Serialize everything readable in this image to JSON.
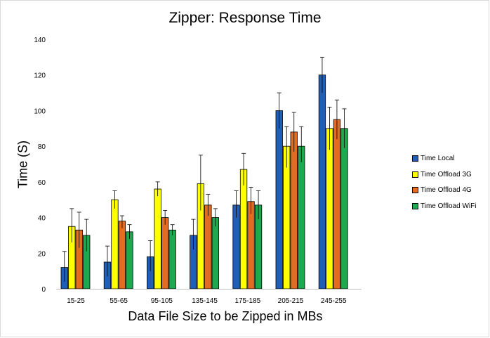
{
  "chart_data": {
    "type": "bar",
    "title": "Zipper: Response Time",
    "xlabel": "Data File Size to be Zipped in MBs",
    "ylabel": "Time (S)",
    "ylim": [
      0,
      140
    ],
    "yticks": [
      0,
      20,
      40,
      60,
      80,
      100,
      120,
      140
    ],
    "grid": false,
    "legend_position": "right",
    "categories": [
      "15-25",
      "55-65",
      "95-105",
      "135-145",
      "175-185",
      "205-215",
      "245-255"
    ],
    "series": [
      {
        "name": "Time Local",
        "color": "#1f5fb8",
        "values": [
          12,
          15,
          18,
          30,
          47,
          100,
          120
        ],
        "error_upper": [
          21,
          24,
          27,
          39,
          55,
          110,
          130
        ],
        "error_lower": [
          4,
          7,
          10,
          22,
          40,
          90,
          110
        ]
      },
      {
        "name": "Time Offload 3G",
        "color": "#ffff00",
        "values": [
          35,
          50,
          56,
          59,
          67,
          80,
          90
        ],
        "error_upper": [
          45,
          55,
          60,
          75,
          76,
          91,
          102
        ],
        "error_lower": [
          26,
          45,
          52,
          44,
          58,
          68,
          78
        ]
      },
      {
        "name": "Time Offload 4G",
        "color": "#e46c22",
        "values": [
          33,
          38,
          40,
          47,
          49,
          88,
          95
        ],
        "error_upper": [
          43,
          41,
          44,
          53,
          57,
          99,
          106
        ],
        "error_lower": [
          23,
          34,
          36,
          41,
          42,
          77,
          84
        ]
      },
      {
        "name": "Time Offload WiFi",
        "color": "#1ea84f",
        "values": [
          30,
          32,
          33,
          40,
          47,
          80,
          90
        ],
        "error_upper": [
          39,
          36,
          36,
          45,
          55,
          91,
          101
        ],
        "error_lower": [
          21,
          28,
          30,
          35,
          39,
          71,
          79
        ]
      }
    ]
  }
}
